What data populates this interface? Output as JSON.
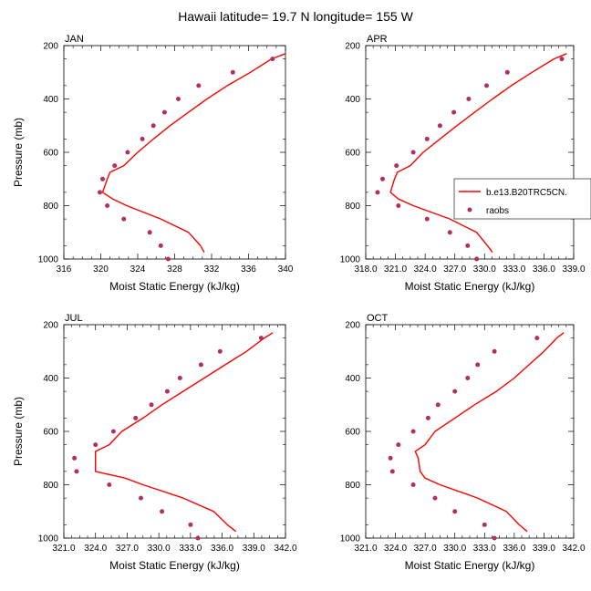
{
  "figure": {
    "title": "Hawaii  latitude= 19.7 N longitude= 155 W",
    "model_color": "#ff0000",
    "obs_color": "#b03060"
  },
  "legend": {
    "model_label": "b.e13.B20TRC5CN.",
    "obs_label": "raobs",
    "placement": "right of APR panel"
  },
  "chart_data": [
    {
      "type": "line",
      "panel": "JAN",
      "title": "JAN",
      "xlabel": "Moist Static Energy (kJ/kg)",
      "ylabel": "Pressure (mb)",
      "xlim": [
        316,
        340
      ],
      "xticks": [
        316,
        320,
        324,
        328,
        332,
        336,
        340
      ],
      "xtick_labels": [
        "316",
        "320",
        "324",
        "328",
        "332",
        "336",
        "340"
      ],
      "ylim": [
        1000,
        200
      ],
      "yticks": [
        200,
        400,
        600,
        800,
        1000
      ],
      "y_reversed": true,
      "series": [
        {
          "name": "b.e13.B20TRC5CN.",
          "kind": "line",
          "points": [
            [
              331.2,
              975
            ],
            [
              330.8,
              950
            ],
            [
              329.5,
              900
            ],
            [
              326.5,
              850
            ],
            [
              322.8,
              800
            ],
            [
              321.3,
              775
            ],
            [
              320.2,
              750
            ],
            [
              320.7,
              700
            ],
            [
              321.0,
              675
            ],
            [
              322.5,
              650
            ],
            [
              324.0,
              600
            ],
            [
              325.7,
              550
            ],
            [
              327.5,
              500
            ],
            [
              329.5,
              450
            ],
            [
              331.5,
              400
            ],
            [
              333.7,
              350
            ],
            [
              336.2,
              300
            ],
            [
              338.5,
              250
            ],
            [
              340.0,
              230
            ]
          ]
        },
        {
          "name": "raobs",
          "kind": "scatter",
          "points": [
            [
              327.3,
              1000
            ],
            [
              326.5,
              950
            ],
            [
              325.3,
              900
            ],
            [
              322.5,
              850
            ],
            [
              320.7,
              800
            ],
            [
              319.9,
              750
            ],
            [
              320.2,
              700
            ],
            [
              321.5,
              650
            ],
            [
              322.9,
              600
            ],
            [
              324.5,
              550
            ],
            [
              325.7,
              500
            ],
            [
              326.9,
              450
            ],
            [
              328.4,
              400
            ],
            [
              330.6,
              350
            ],
            [
              334.3,
              300
            ],
            [
              338.6,
              250
            ]
          ]
        }
      ]
    },
    {
      "type": "line",
      "panel": "APR",
      "title": "APR",
      "xlabel": "Moist Static Energy (kJ/kg)",
      "ylabel": "",
      "xlim": [
        318.0,
        339.0
      ],
      "xticks": [
        318.0,
        321.0,
        324.0,
        327.0,
        330.0,
        333.0,
        336.0,
        339.0
      ],
      "xtick_labels": [
        "318.0",
        "321.0",
        "324.0",
        "327.0",
        "330.0",
        "333.0",
        "336.0",
        "339.0"
      ],
      "ylim": [
        1000,
        200
      ],
      "yticks": [
        200,
        400,
        600,
        800,
        1000
      ],
      "y_reversed": true,
      "series": [
        {
          "name": "b.e13.B20TRC5CN.",
          "kind": "line",
          "points": [
            [
              330.8,
              975
            ],
            [
              330.3,
              950
            ],
            [
              329.2,
              900
            ],
            [
              326.5,
              850
            ],
            [
              322.8,
              800
            ],
            [
              321.3,
              775
            ],
            [
              320.5,
              750
            ],
            [
              320.9,
              700
            ],
            [
              321.2,
              675
            ],
            [
              322.5,
              650
            ],
            [
              323.8,
              600
            ],
            [
              325.5,
              550
            ],
            [
              327.2,
              500
            ],
            [
              329.0,
              450
            ],
            [
              330.8,
              400
            ],
            [
              332.7,
              350
            ],
            [
              334.8,
              300
            ],
            [
              337.0,
              250
            ],
            [
              338.3,
              230
            ]
          ]
        },
        {
          "name": "raobs",
          "kind": "scatter",
          "points": [
            [
              329.2,
              1000
            ],
            [
              328.3,
              950
            ],
            [
              326.5,
              900
            ],
            [
              324.2,
              850
            ],
            [
              321.3,
              800
            ],
            [
              319.2,
              750
            ],
            [
              319.7,
              700
            ],
            [
              321.1,
              650
            ],
            [
              322.8,
              600
            ],
            [
              324.2,
              550
            ],
            [
              325.5,
              500
            ],
            [
              326.9,
              450
            ],
            [
              328.4,
              400
            ],
            [
              330.2,
              350
            ],
            [
              332.3,
              300
            ],
            [
              337.8,
              250
            ]
          ]
        }
      ]
    },
    {
      "type": "line",
      "panel": "JUL",
      "title": "JUL",
      "xlabel": "Moist Static Energy (kJ/kg)",
      "ylabel": "Pressure (mb)",
      "xlim": [
        321.0,
        342.0
      ],
      "xticks": [
        321.0,
        324.0,
        327.0,
        330.0,
        333.0,
        336.0,
        339.0,
        342.0
      ],
      "xtick_labels": [
        "321.0",
        "324.0",
        "327.0",
        "330.0",
        "333.0",
        "336.0",
        "339.0",
        "342.0"
      ],
      "ylim": [
        1000,
        200
      ],
      "yticks": [
        200,
        400,
        600,
        800,
        1000
      ],
      "y_reversed": true,
      "series": [
        {
          "name": "b.e13.B20TRC5CN.",
          "kind": "line",
          "points": [
            [
              337.3,
              975
            ],
            [
              336.5,
              950
            ],
            [
              335.2,
              900
            ],
            [
              332.3,
              850
            ],
            [
              328.5,
              800
            ],
            [
              326.8,
              775
            ],
            [
              324.0,
              750
            ],
            [
              324.0,
              700
            ],
            [
              324.0,
              675
            ],
            [
              325.3,
              650
            ],
            [
              326.5,
              600
            ],
            [
              328.5,
              550
            ],
            [
              330.3,
              500
            ],
            [
              332.3,
              450
            ],
            [
              334.3,
              400
            ],
            [
              336.3,
              350
            ],
            [
              338.3,
              300
            ],
            [
              340.0,
              250
            ],
            [
              340.8,
              230
            ]
          ]
        },
        {
          "name": "raobs",
          "kind": "scatter",
          "points": [
            [
              333.7,
              1000
            ],
            [
              333.0,
              950
            ],
            [
              330.3,
              900
            ],
            [
              328.3,
              850
            ],
            [
              325.3,
              800
            ],
            [
              322.2,
              750
            ],
            [
              322.0,
              700
            ],
            [
              324.0,
              650
            ],
            [
              325.7,
              600
            ],
            [
              327.8,
              550
            ],
            [
              329.3,
              500
            ],
            [
              330.8,
              450
            ],
            [
              332.0,
              400
            ],
            [
              334.0,
              350
            ],
            [
              335.8,
              300
            ],
            [
              339.7,
              250
            ]
          ]
        }
      ]
    },
    {
      "type": "line",
      "panel": "OCT",
      "title": "OCT",
      "xlabel": "Moist Static Energy (kJ/kg)",
      "ylabel": "",
      "xlim": [
        321.0,
        342.0
      ],
      "xticks": [
        321.0,
        324.0,
        327.0,
        330.0,
        333.0,
        336.0,
        339.0,
        342.0
      ],
      "xtick_labels": [
        "321.0",
        "324.0",
        "327.0",
        "330.0",
        "333.0",
        "336.0",
        "339.0",
        "342.0"
      ],
      "ylim": [
        1000,
        200
      ],
      "yticks": [
        200,
        400,
        600,
        800,
        1000
      ],
      "y_reversed": true,
      "series": [
        {
          "name": "b.e13.B20TRC5CN.",
          "kind": "line",
          "points": [
            [
              337.3,
              975
            ],
            [
              336.5,
              950
            ],
            [
              335.2,
              900
            ],
            [
              332.3,
              850
            ],
            [
              328.5,
              800
            ],
            [
              327.0,
              775
            ],
            [
              326.5,
              750
            ],
            [
              326.3,
              700
            ],
            [
              326.0,
              675
            ],
            [
              327.0,
              650
            ],
            [
              328.0,
              600
            ],
            [
              330.0,
              550
            ],
            [
              332.0,
              500
            ],
            [
              334.2,
              450
            ],
            [
              336.0,
              400
            ],
            [
              337.5,
              350
            ],
            [
              339.0,
              300
            ],
            [
              340.3,
              250
            ],
            [
              341.0,
              230
            ]
          ]
        },
        {
          "name": "raobs",
          "kind": "scatter",
          "points": [
            [
              334.0,
              1000
            ],
            [
              333.0,
              950
            ],
            [
              330.0,
              900
            ],
            [
              328.0,
              850
            ],
            [
              325.8,
              800
            ],
            [
              323.7,
              750
            ],
            [
              323.5,
              700
            ],
            [
              324.3,
              650
            ],
            [
              325.8,
              600
            ],
            [
              327.3,
              550
            ],
            [
              328.3,
              500
            ],
            [
              330.0,
              450
            ],
            [
              331.3,
              400
            ],
            [
              332.3,
              350
            ],
            [
              334.0,
              300
            ],
            [
              338.3,
              250
            ]
          ]
        }
      ]
    }
  ]
}
